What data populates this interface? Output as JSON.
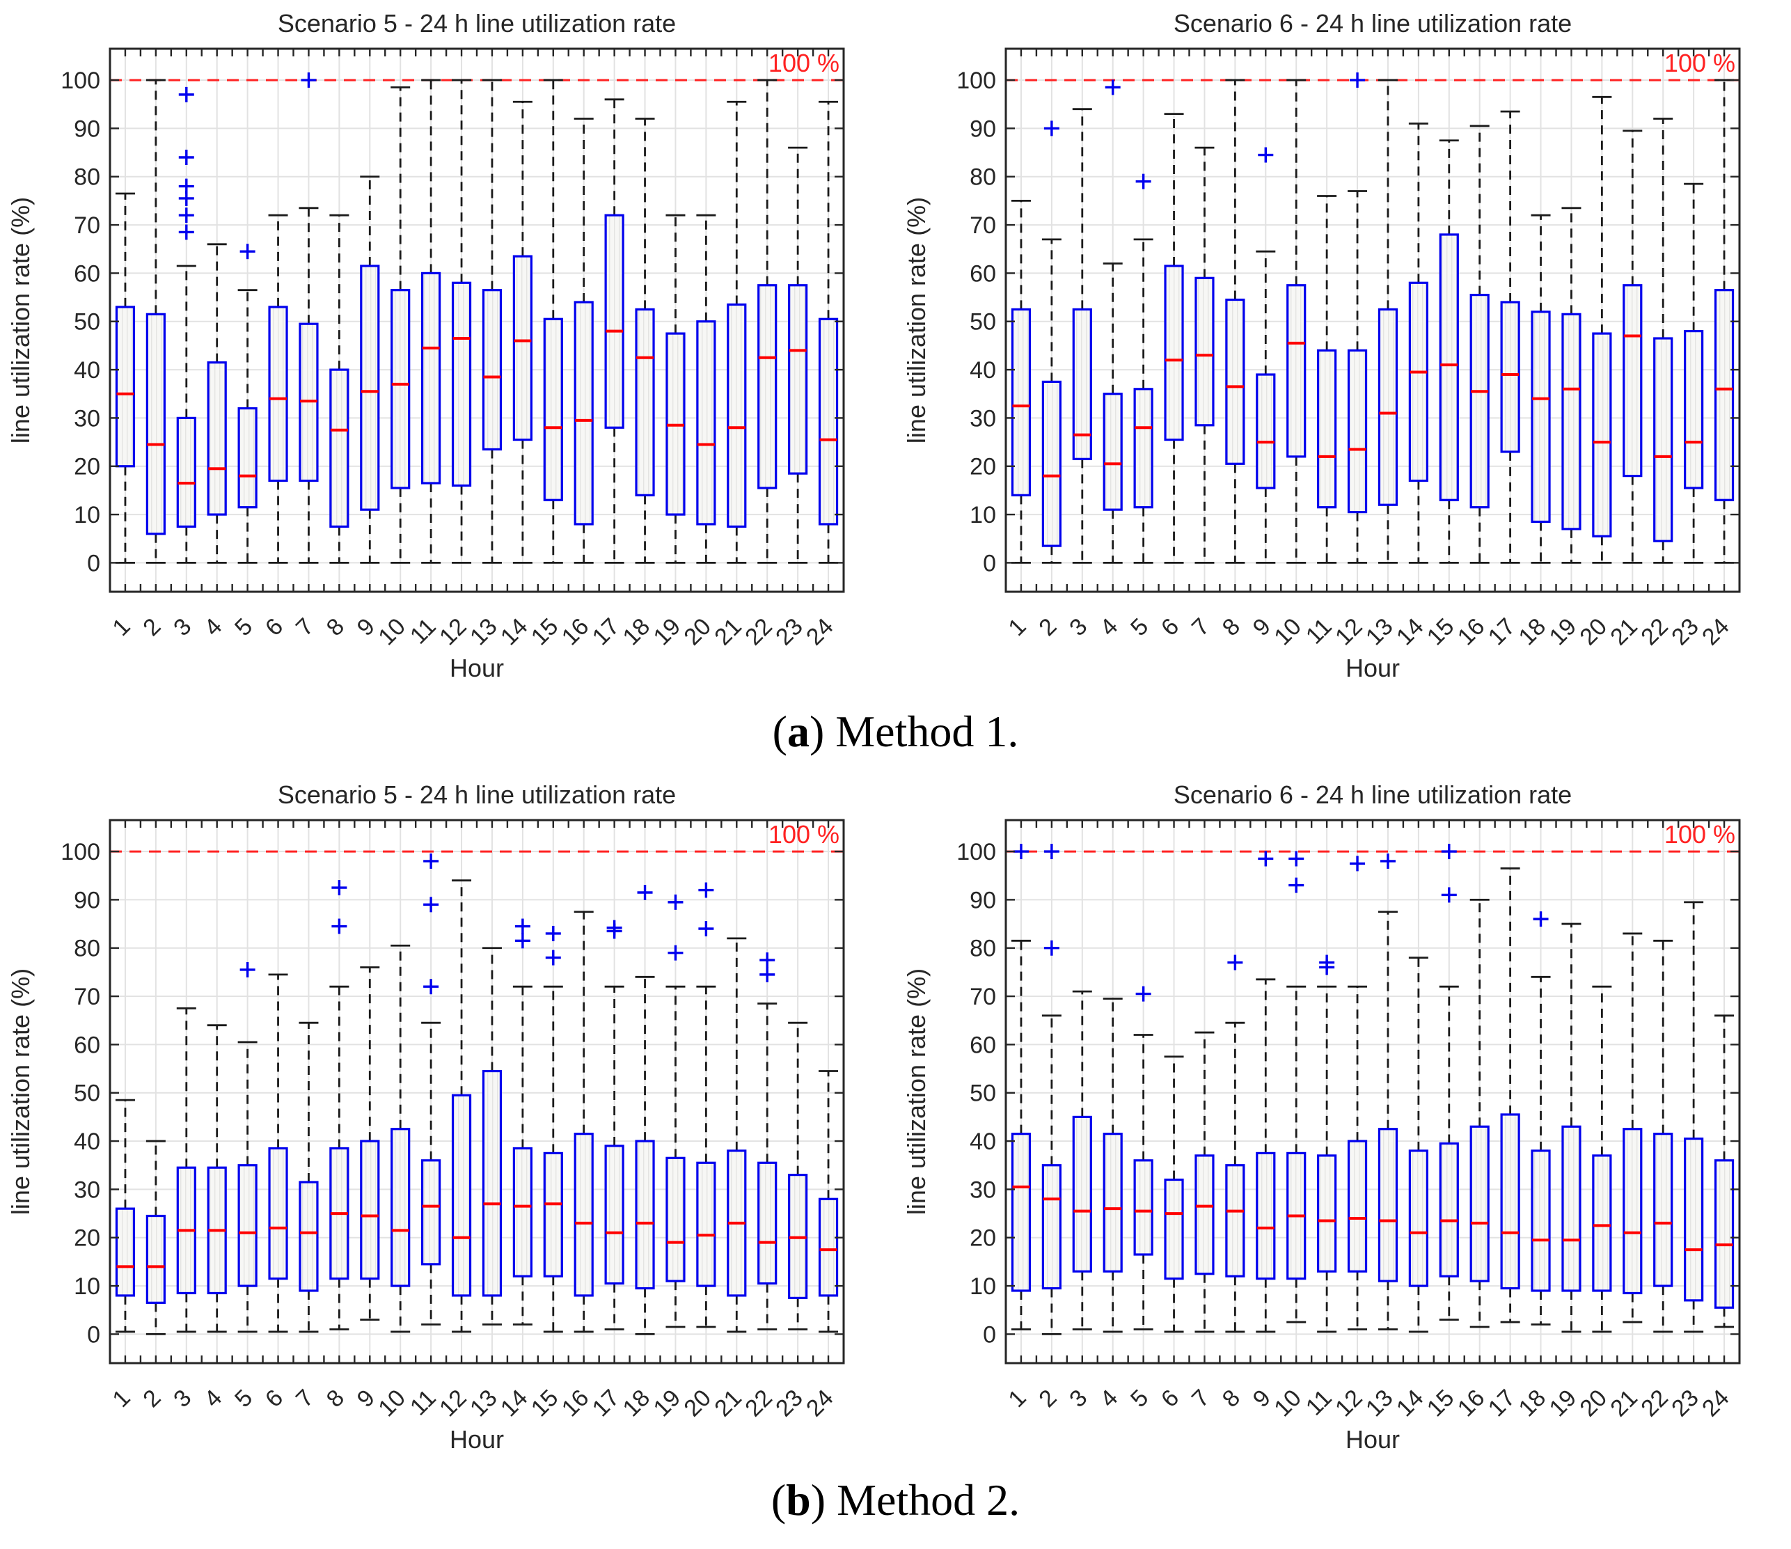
{
  "figure": {
    "captions": {
      "a": {
        "open": "(",
        "letter": "a",
        "rest": ") Method 1."
      },
      "b": {
        "open": "(",
        "letter": "b",
        "rest": ") Method 2."
      }
    }
  },
  "style": {
    "box_edge_color": "#0000ee",
    "median_color": "#ff0000",
    "whisker_color": "#1a1a1a",
    "outlier_color": "#0000ee",
    "grid_color": "#e2e2e2",
    "axis_color": "#262626",
    "text_color": "#262626",
    "limit_line_color": "#ff2222",
    "box_fill_bg": "#f7f7f5",
    "box_fill_stripe": "#e4e4e2"
  },
  "chart_data": [
    {
      "type": "boxplot",
      "name": "method1-scenario5",
      "title": "Scenario 5 -  24 h line utilization rate",
      "xlabel": "Hour",
      "ylabel": "line utilization rate  (%)",
      "limit_label": "100 %",
      "limit_value": 100,
      "ylim": [
        -6,
        106.5
      ],
      "yticks": [
        0,
        10,
        20,
        30,
        40,
        50,
        60,
        70,
        80,
        90,
        100
      ],
      "hours": [
        1,
        2,
        3,
        4,
        5,
        6,
        7,
        8,
        9,
        10,
        11,
        12,
        13,
        14,
        15,
        16,
        17,
        18,
        19,
        20,
        21,
        22,
        23,
        24
      ],
      "boxes": [
        [
          0,
          20,
          35,
          53,
          76.5
        ],
        [
          0,
          6,
          24.5,
          51.5,
          100
        ],
        [
          0,
          7.5,
          16.5,
          30,
          61.5
        ],
        [
          0,
          10,
          19.5,
          41.5,
          66
        ],
        [
          0,
          11.5,
          18,
          32,
          56.5
        ],
        [
          0,
          17,
          34,
          53,
          72
        ],
        [
          0,
          17,
          33.5,
          49.5,
          73.5
        ],
        [
          0,
          7.5,
          27.5,
          40,
          72
        ],
        [
          0,
          11,
          35.5,
          61.5,
          80
        ],
        [
          0,
          15.5,
          37,
          56.5,
          98.5
        ],
        [
          0,
          16.5,
          44.5,
          60,
          100
        ],
        [
          0,
          16,
          46.5,
          58,
          100
        ],
        [
          0,
          23.5,
          38.5,
          56.5,
          100
        ],
        [
          0,
          25.5,
          46,
          63.5,
          95.5
        ],
        [
          0,
          13,
          28,
          50.5,
          100
        ],
        [
          0,
          8,
          29.5,
          54,
          92
        ],
        [
          0,
          28,
          48,
          72,
          96
        ],
        [
          0,
          14,
          42.5,
          52.5,
          92
        ],
        [
          0,
          10,
          28.5,
          47.5,
          72
        ],
        [
          0,
          8,
          24.5,
          50,
          72
        ],
        [
          0,
          7.5,
          28,
          53.5,
          95.5
        ],
        [
          0,
          15.5,
          42.5,
          57.5,
          100
        ],
        [
          0,
          18.5,
          44,
          57.5,
          86
        ],
        [
          0,
          8,
          25.5,
          50.5,
          95.5
        ]
      ],
      "outliers": [
        [
          3,
          68.5
        ],
        [
          3,
          72
        ],
        [
          3,
          75.5
        ],
        [
          3,
          78
        ],
        [
          3,
          84
        ],
        [
          3,
          97
        ],
        [
          5,
          64.5
        ],
        [
          7,
          100
        ]
      ]
    },
    {
      "type": "boxplot",
      "name": "method1-scenario6",
      "title": "Scenario 6 -  24 h line utilization rate",
      "xlabel": "Hour",
      "ylabel": "line utilization rate  (%)",
      "limit_label": "100 %",
      "limit_value": 100,
      "ylim": [
        -6,
        106.5
      ],
      "yticks": [
        0,
        10,
        20,
        30,
        40,
        50,
        60,
        70,
        80,
        90,
        100
      ],
      "hours": [
        1,
        2,
        3,
        4,
        5,
        6,
        7,
        8,
        9,
        10,
        11,
        12,
        13,
        14,
        15,
        16,
        17,
        18,
        19,
        20,
        21,
        22,
        23,
        24
      ],
      "boxes": [
        [
          0,
          14,
          32.5,
          52.5,
          75
        ],
        [
          0,
          3.5,
          18,
          37.5,
          67
        ],
        [
          0,
          21.5,
          26.5,
          52.5,
          94
        ],
        [
          0,
          11,
          20.5,
          35,
          62
        ],
        [
          0,
          11.5,
          28,
          36,
          67
        ],
        [
          0,
          25.5,
          42,
          61.5,
          93
        ],
        [
          0,
          28.5,
          43,
          59,
          86
        ],
        [
          0,
          20.5,
          36.5,
          54.5,
          100
        ],
        [
          0,
          15.5,
          25,
          39,
          64.5
        ],
        [
          0,
          22,
          45.5,
          57.5,
          100
        ],
        [
          0,
          11.5,
          22,
          44,
          76
        ],
        [
          0,
          10.5,
          23.5,
          44,
          77
        ],
        [
          0,
          12,
          31,
          52.5,
          100
        ],
        [
          0,
          17,
          39.5,
          58,
          91
        ],
        [
          0,
          13,
          41,
          68,
          87.5
        ],
        [
          0,
          11.5,
          35.5,
          55.5,
          90.5
        ],
        [
          0,
          23,
          39,
          54,
          93.5
        ],
        [
          0,
          8.5,
          34,
          52,
          72
        ],
        [
          0,
          7,
          36,
          51.5,
          73.5
        ],
        [
          0,
          5.5,
          25,
          47.5,
          96.5
        ],
        [
          0,
          18,
          47,
          57.5,
          89.5
        ],
        [
          0,
          4.5,
          22,
          46.5,
          92
        ],
        [
          0,
          15.5,
          25,
          48,
          78.5
        ],
        [
          0,
          13,
          36,
          56.5,
          100
        ]
      ],
      "outliers": [
        [
          2,
          90
        ],
        [
          4,
          98.5
        ],
        [
          5,
          79
        ],
        [
          9,
          84.5
        ],
        [
          12,
          100
        ]
      ]
    },
    {
      "type": "boxplot",
      "name": "method2-scenario5",
      "title": "Scenario 5 -  24 h line utilization rate",
      "xlabel": "Hour",
      "ylabel": "line utilization rate  (%)",
      "limit_label": "100 %",
      "limit_value": 100,
      "ylim": [
        -6,
        106.5
      ],
      "yticks": [
        0,
        10,
        20,
        30,
        40,
        50,
        60,
        70,
        80,
        90,
        100
      ],
      "hours": [
        1,
        2,
        3,
        4,
        5,
        6,
        7,
        8,
        9,
        10,
        11,
        12,
        13,
        14,
        15,
        16,
        17,
        18,
        19,
        20,
        21,
        22,
        23,
        24
      ],
      "boxes": [
        [
          0.5,
          8,
          14,
          26,
          48.5
        ],
        [
          0,
          6.5,
          14,
          24.5,
          40
        ],
        [
          0.5,
          8.5,
          21.5,
          34.5,
          67.5
        ],
        [
          0.5,
          8.5,
          21.5,
          34.5,
          64
        ],
        [
          0.5,
          10,
          21,
          35,
          60.5
        ],
        [
          0.5,
          11.5,
          22,
          38.5,
          74.5
        ],
        [
          0.5,
          9,
          21,
          31.5,
          64.5
        ],
        [
          1,
          11.5,
          25,
          38.5,
          72
        ],
        [
          3,
          11.5,
          24.5,
          40,
          76
        ],
        [
          0.5,
          10,
          21.5,
          42.5,
          80.5
        ],
        [
          2,
          14.5,
          26.5,
          36,
          64.5
        ],
        [
          0.5,
          8,
          20,
          49.5,
          94
        ],
        [
          2,
          8,
          27,
          54.5,
          80
        ],
        [
          2,
          12,
          26.5,
          38.5,
          72
        ],
        [
          0.5,
          12,
          27,
          37.5,
          72
        ],
        [
          0.5,
          8,
          23,
          41.5,
          87.5
        ],
        [
          1,
          10.5,
          21,
          39,
          72
        ],
        [
          0,
          9.5,
          23,
          40,
          74
        ],
        [
          1.5,
          11,
          19,
          36.5,
          72
        ],
        [
          1.5,
          10,
          20.5,
          35.5,
          72
        ],
        [
          0.5,
          8,
          23,
          38,
          82
        ],
        [
          1,
          10.5,
          19,
          35.5,
          68.5
        ],
        [
          1,
          7.5,
          20,
          33,
          64.5
        ],
        [
          0.5,
          8,
          17.5,
          28,
          54.5
        ]
      ],
      "outliers": [
        [
          5,
          75.5
        ],
        [
          8,
          84.5
        ],
        [
          8,
          92.5
        ],
        [
          11,
          72
        ],
        [
          11,
          89
        ],
        [
          11,
          98
        ],
        [
          14,
          81.5
        ],
        [
          14,
          84.5
        ],
        [
          15,
          78
        ],
        [
          15,
          83
        ],
        [
          17,
          83.5
        ],
        [
          17,
          84.2
        ],
        [
          18,
          91.5
        ],
        [
          19,
          79
        ],
        [
          19,
          89.5
        ],
        [
          20,
          84
        ],
        [
          20,
          92
        ],
        [
          22,
          74.5
        ],
        [
          22,
          77.5
        ]
      ]
    },
    {
      "type": "boxplot",
      "name": "method2-scenario6",
      "title": "Scenario 6 -  24 h line utilization rate",
      "xlabel": "Hour",
      "ylabel": "line utilization rate  (%)",
      "limit_label": "100 %",
      "limit_value": 100,
      "ylim": [
        -6,
        106.5
      ],
      "yticks": [
        0,
        10,
        20,
        30,
        40,
        50,
        60,
        70,
        80,
        90,
        100
      ],
      "hours": [
        1,
        2,
        3,
        4,
        5,
        6,
        7,
        8,
        9,
        10,
        11,
        12,
        13,
        14,
        15,
        16,
        17,
        18,
        19,
        20,
        21,
        22,
        23,
        24
      ],
      "boxes": [
        [
          1,
          9,
          30.5,
          41.5,
          81.5
        ],
        [
          0,
          9.5,
          28,
          35,
          66
        ],
        [
          1,
          13,
          25.5,
          45,
          71
        ],
        [
          0.5,
          13,
          26,
          41.5,
          69.5
        ],
        [
          1,
          16.5,
          25.5,
          36,
          62
        ],
        [
          0.5,
          11.5,
          25,
          32,
          57.5
        ],
        [
          0.5,
          12.5,
          26.5,
          37,
          62.5
        ],
        [
          0.5,
          12,
          25.5,
          35,
          64.5
        ],
        [
          0.5,
          11.5,
          22,
          37.5,
          73.5
        ],
        [
          2.5,
          11.5,
          24.5,
          37.5,
          72
        ],
        [
          0.5,
          13,
          23.5,
          37,
          72
        ],
        [
          1,
          13,
          24,
          40,
          72
        ],
        [
          1,
          11,
          23.5,
          42.5,
          87.5
        ],
        [
          0.5,
          10,
          21,
          38,
          78
        ],
        [
          3,
          12,
          23.5,
          39.5,
          72
        ],
        [
          1.5,
          11,
          23,
          43,
          90
        ],
        [
          2.5,
          9.5,
          21,
          45.5,
          96.5
        ],
        [
          2,
          9,
          19.5,
          38,
          74
        ],
        [
          0.5,
          9,
          19.5,
          43,
          85
        ],
        [
          0.5,
          9,
          22.5,
          37,
          72
        ],
        [
          2.5,
          8.5,
          21,
          42.5,
          83
        ],
        [
          0.5,
          10,
          23,
          41.5,
          81.5
        ],
        [
          0.5,
          7,
          17.5,
          40.5,
          89.5
        ],
        [
          1.5,
          5.5,
          18.5,
          36,
          66
        ]
      ],
      "outliers": [
        [
          1,
          100
        ],
        [
          2,
          80
        ],
        [
          2,
          100
        ],
        [
          5,
          70.5
        ],
        [
          8,
          77
        ],
        [
          9,
          98.5
        ],
        [
          10,
          93
        ],
        [
          10,
          98.5
        ],
        [
          11,
          76
        ],
        [
          11,
          77
        ],
        [
          12,
          97.5
        ],
        [
          13,
          98
        ],
        [
          15,
          91
        ],
        [
          15,
          100
        ],
        [
          18,
          86
        ]
      ]
    }
  ]
}
